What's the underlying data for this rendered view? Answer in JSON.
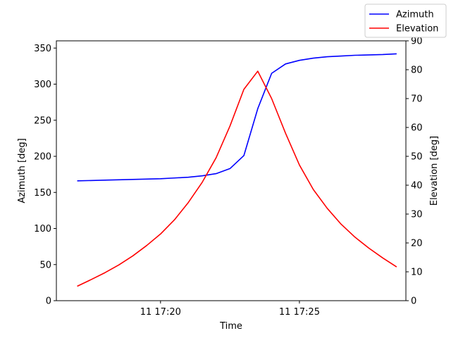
{
  "chart_data": {
    "type": "line",
    "xlabel": "Time",
    "ylabel_left": "Azimuth [deg]",
    "ylabel_right": "Elevation [deg]",
    "x_ticks": [
      "11 17:20",
      "11 17:25"
    ],
    "y_left_ticks": [
      "0",
      "50",
      "100",
      "150",
      "200",
      "250",
      "300",
      "350"
    ],
    "y_right_ticks": [
      "0",
      "10",
      "20",
      "30",
      "40",
      "50",
      "60",
      "70",
      "80",
      "90"
    ],
    "xlim": [
      "17:16:15",
      "17:28:50"
    ],
    "ylim_left": [
      0,
      360
    ],
    "ylim_right": [
      0,
      90
    ],
    "legend_position": "top-right",
    "series": [
      {
        "name": "Azimuth",
        "color": "#0000ff",
        "axis": "left",
        "x": [
          "17:17:00",
          "17:18:00",
          "17:19:00",
          "17:20:00",
          "17:20:30",
          "17:21:00",
          "17:21:30",
          "17:22:00",
          "17:22:30",
          "17:23:00",
          "17:23:30",
          "17:24:00",
          "17:24:30",
          "17:25:00",
          "17:25:30",
          "17:26:00",
          "17:26:30",
          "17:27:00",
          "17:28:00",
          "17:28:30"
        ],
        "values": [
          166,
          167,
          168,
          169,
          170,
          171,
          173,
          176,
          183,
          201,
          266,
          315,
          328,
          333,
          336,
          338,
          339,
          340,
          341,
          342
        ]
      },
      {
        "name": "Elevation",
        "color": "#ff0000",
        "axis": "right",
        "x": [
          "17:17:00",
          "17:17:30",
          "17:18:00",
          "17:18:30",
          "17:19:00",
          "17:19:30",
          "17:20:00",
          "17:20:30",
          "17:21:00",
          "17:21:30",
          "17:22:00",
          "17:22:30",
          "17:23:00",
          "17:23:30",
          "17:24:00",
          "17:24:30",
          "17:25:00",
          "17:25:30",
          "17:26:00",
          "17:26:30",
          "17:27:00",
          "17:27:30",
          "17:28:00",
          "17:28:30"
        ],
        "values": [
          5,
          7.3,
          9.7,
          12.4,
          15.5,
          19.1,
          23.1,
          28,
          34,
          41,
          49.5,
          60.5,
          73.2,
          79.5,
          70,
          58,
          47,
          38.5,
          32,
          26.5,
          22,
          18.2,
          14.8,
          11.7
        ]
      }
    ]
  }
}
